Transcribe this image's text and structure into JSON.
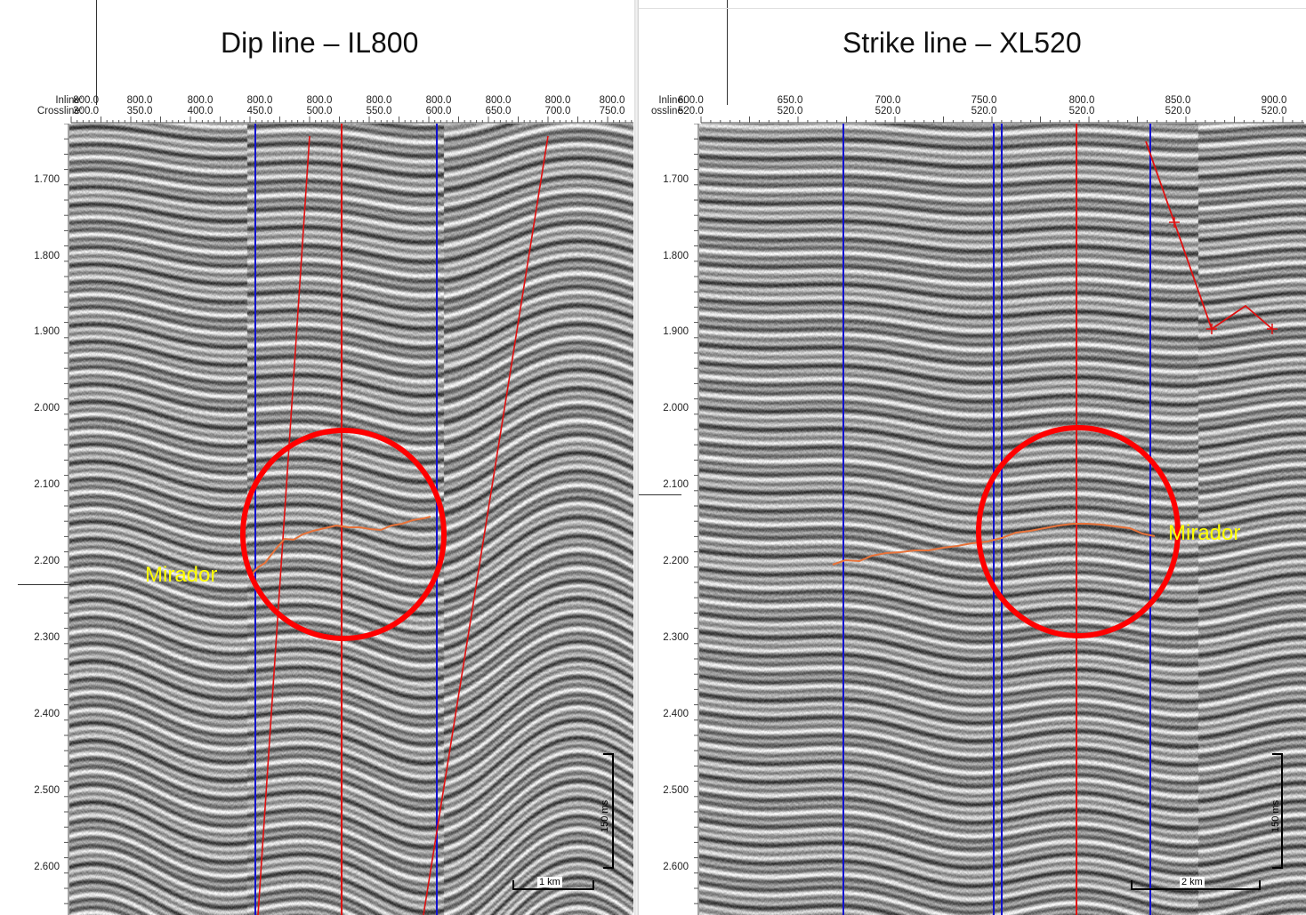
{
  "panels": [
    {
      "title": "Dip line – IL800",
      "header_labels": [
        "Inline:",
        "Crossline:"
      ],
      "first_trace": {
        "inline": "800.0",
        "crossline": "300.0"
      },
      "traces": [
        {
          "inline": "800.0",
          "crossline": "350.0"
        },
        {
          "inline": "800.0",
          "crossline": "400.0"
        },
        {
          "inline": "800.0",
          "crossline": "450.0"
        },
        {
          "inline": "800.0",
          "crossline": "500.0"
        },
        {
          "inline": "800.0",
          "crossline": "550.0"
        },
        {
          "inline": "800.0",
          "crossline": "600.0"
        },
        {
          "inline": "800.0",
          "crossline": "650.0"
        },
        {
          "inline": "800.0",
          "crossline": "700.0"
        },
        {
          "inline": "800.0",
          "crossline": "750.0"
        }
      ],
      "time_labels": [
        "1.700",
        "1.800",
        "1.900",
        "2.000",
        "2.100",
        "2.200",
        "2.300",
        "2.400",
        "2.500",
        "2.600"
      ],
      "horizon_label": "Mirador",
      "scale_time": "150 ms",
      "scale_distance": "1 km",
      "colors": {
        "well_line": "#1010d0",
        "fault_line": "#e01010",
        "circle": "#ff0000",
        "horizon": "#e8733a",
        "label": "#ffff00"
      }
    },
    {
      "title": "Strike line – XL520",
      "header_labels": [
        "Inline:",
        "ossline:"
      ],
      "first_trace": {
        "inline": "600.0",
        "crossline": "520.0"
      },
      "traces": [
        {
          "inline": "650.0",
          "crossline": "520.0"
        },
        {
          "inline": "700.0",
          "crossline": "520.0"
        },
        {
          "inline": "750.0",
          "crossline": "520.0"
        },
        {
          "inline": "800.0",
          "crossline": "520.0"
        },
        {
          "inline": "850.0",
          "crossline": "520.0"
        },
        {
          "inline": "900.0",
          "crossline": "520.0"
        }
      ],
      "time_labels": [
        "1.700",
        "1.800",
        "1.900",
        "2.000",
        "2.100",
        "2.200",
        "2.300",
        "2.400",
        "2.500",
        "2.600"
      ],
      "horizon_label": "Mirador",
      "scale_time": "150 ms",
      "scale_distance": "2 km",
      "colors": {
        "well_line": "#1010d0",
        "fault_line": "#e01010",
        "circle": "#ff0000",
        "horizon": "#e8733a",
        "label": "#ffff00"
      }
    }
  ]
}
